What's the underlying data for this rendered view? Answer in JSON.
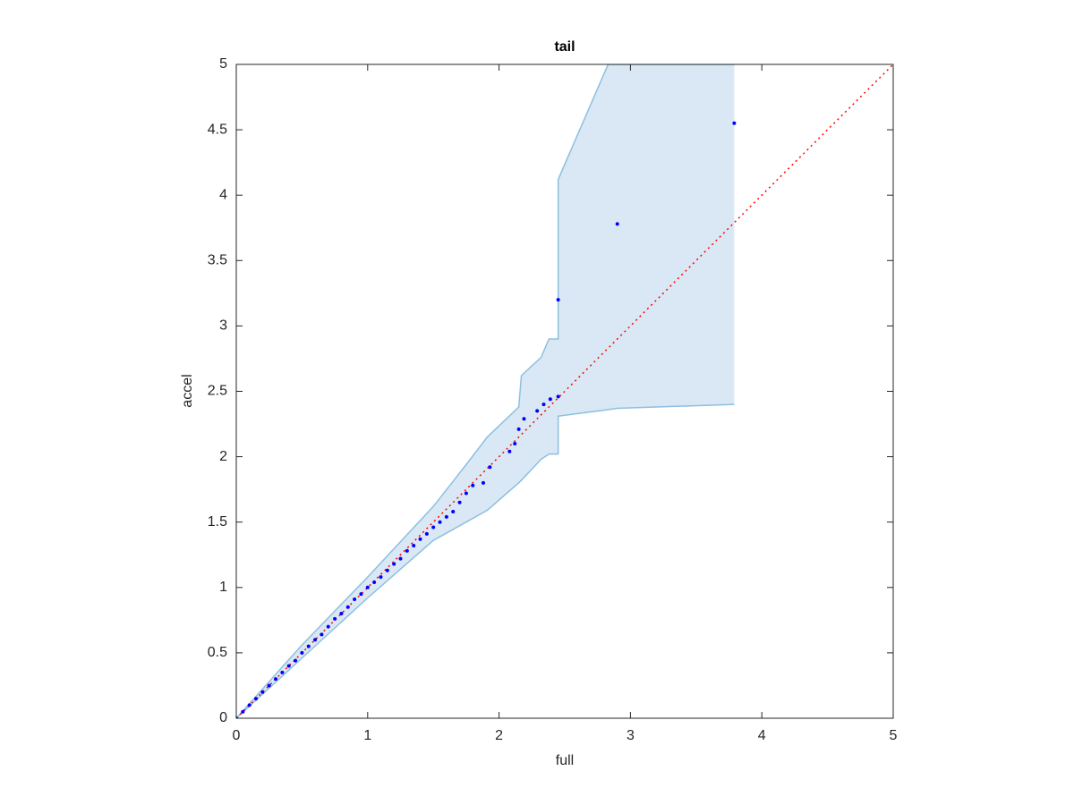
{
  "chart_data": {
    "type": "scatter",
    "title": "tail",
    "xlabel": "full",
    "ylabel": "accel",
    "x": [
      0,
      0.05,
      0.1,
      0.15,
      0.2,
      0.25,
      0.3,
      0.35,
      0.4,
      0.45,
      0.5,
      0.55,
      0.6,
      0.65,
      0.7,
      0.75,
      0.8,
      0.85,
      0.9,
      0.95,
      1,
      1.05,
      1.1,
      1.15,
      1.2,
      1.25,
      1.3,
      1.35,
      1.4,
      1.45,
      1.5,
      1.55,
      1.6,
      1.65,
      1.7,
      1.75,
      1.8,
      1.88,
      1.93,
      2.08,
      2.12,
      2.15,
      2.19,
      2.29,
      2.34,
      2.39,
      2.45,
      2.45,
      2.9,
      3.79
    ],
    "values": [
      0,
      0.05,
      0.1,
      0.15,
      0.2,
      0.25,
      0.3,
      0.35,
      0.4,
      0.44,
      0.5,
      0.55,
      0.6,
      0.64,
      0.7,
      0.76,
      0.8,
      0.85,
      0.91,
      0.95,
      1,
      1.04,
      1.08,
      1.13,
      1.18,
      1.22,
      1.28,
      1.32,
      1.37,
      1.41,
      1.46,
      1.5,
      1.54,
      1.58,
      1.65,
      1.72,
      1.78,
      1.8,
      1.92,
      2.04,
      2.1,
      2.21,
      2.29,
      2.35,
      2.4,
      2.44,
      2.46,
      3.2,
      3.78,
      4.55
    ],
    "color": "#0000ff",
    "band": {
      "x": [
        0,
        0.5,
        1,
        1.5,
        1.75,
        1.91,
        2.15,
        2.17,
        2.32,
        2.38,
        2.45,
        2.45,
        2.83,
        2.9,
        3.79
      ],
      "upper": [
        0,
        0.56,
        1.08,
        1.62,
        1.94,
        2.15,
        2.38,
        2.62,
        2.76,
        2.9,
        2.9,
        4.12,
        5,
        5,
        5
      ],
      "lower": [
        0,
        0.46,
        0.92,
        1.36,
        1.5,
        1.59,
        1.8,
        1.82,
        1.98,
        2.02,
        2.02,
        2.31,
        2.36,
        2.37,
        2.4
      ],
      "color": "#d9e8f4",
      "edge_color": "#8dbfdf"
    },
    "reference": {
      "x": [
        0,
        5
      ],
      "y": [
        0,
        5
      ],
      "color": "#ff0000"
    },
    "xlim": [
      0,
      5
    ],
    "ylim": [
      0,
      5
    ],
    "xticks": [
      0,
      1,
      2,
      3,
      4,
      5
    ],
    "yticks": [
      0,
      0.5,
      1,
      1.5,
      2,
      2.5,
      3,
      3.5,
      4,
      4.5,
      5
    ]
  }
}
